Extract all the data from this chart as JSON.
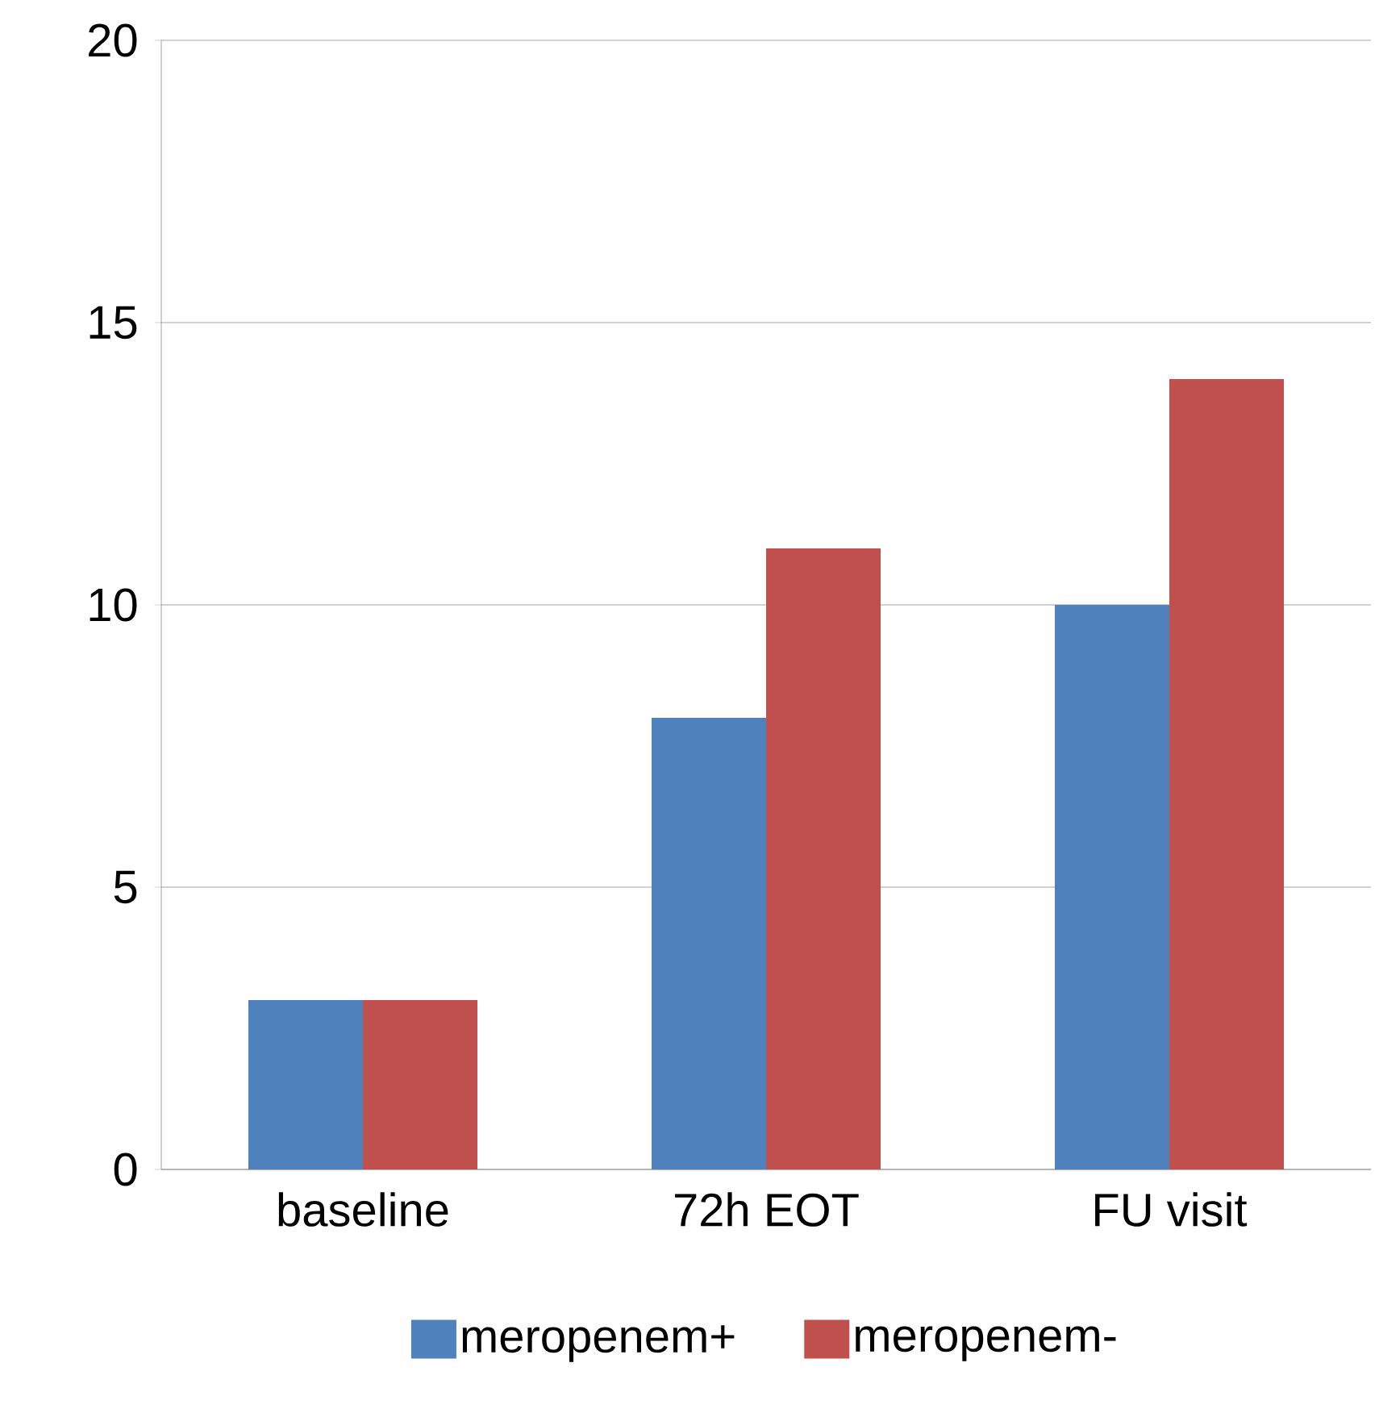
{
  "chart_data": {
    "type": "bar",
    "categories": [
      "baseline",
      "72h EOT",
      "FU visit"
    ],
    "series": [
      {
        "name": "meropenem+",
        "color": "#4f81bd",
        "values": [
          3,
          8,
          10
        ]
      },
      {
        "name": "meropenem-",
        "color": "#c0504d",
        "values": [
          3,
          11,
          14
        ]
      }
    ],
    "ylim": [
      0,
      20
    ],
    "yticks": [
      0,
      5,
      10,
      15,
      20
    ],
    "grid": "y",
    "legend": "bottom"
  }
}
